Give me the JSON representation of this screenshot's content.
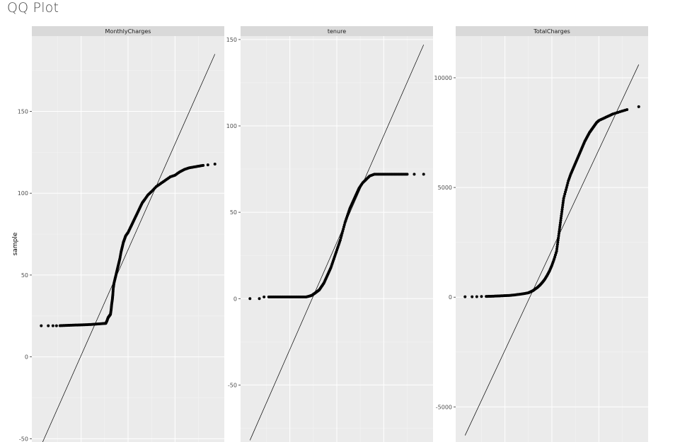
{
  "page": {
    "title": "QQ Plot",
    "y_axis_title": "sample"
  },
  "colors": {
    "panel_bg": "#ebebeb",
    "strip_bg": "#d9d9d9",
    "grid_major": "#ffffff",
    "points": "#000000",
    "line": "#000000"
  },
  "chart_data": [
    {
      "type": "scatter",
      "facet": "MonthlyCharges",
      "x_range": [
        -4.1,
        4.1
      ],
      "ylim": [
        -52,
        196
      ],
      "yticks": [
        -50,
        0,
        50,
        100,
        150
      ],
      "ytick_labels": [
        "-50",
        "0",
        "50",
        "100",
        "150"
      ],
      "reference_line": {
        "x1": -3.7,
        "y1": -54,
        "x2": 3.7,
        "y2": 185
      },
      "points": [
        [
          -3.7,
          19
        ],
        [
          -3.4,
          19
        ],
        [
          -3.2,
          19
        ],
        [
          -3.05,
          19
        ],
        [
          -2.9,
          19.1
        ],
        [
          -2.7,
          19.2
        ],
        [
          -2.5,
          19.3
        ],
        [
          -2.3,
          19.4
        ],
        [
          -2.1,
          19.5
        ],
        [
          -1.9,
          19.6
        ],
        [
          -1.7,
          19.7
        ],
        [
          -1.5,
          19.9
        ],
        [
          -1.3,
          20.1
        ],
        [
          -1.1,
          20.3
        ],
        [
          -0.95,
          20.5
        ],
        [
          -0.9,
          22
        ],
        [
          -0.85,
          24
        ],
        [
          -0.8,
          25
        ],
        [
          -0.75,
          26
        ],
        [
          -0.72,
          29
        ],
        [
          -0.7,
          32
        ],
        [
          -0.67,
          35
        ],
        [
          -0.65,
          38
        ],
        [
          -0.63,
          42
        ],
        [
          -0.6,
          45
        ],
        [
          -0.55,
          48
        ],
        [
          -0.5,
          51
        ],
        [
          -0.45,
          54
        ],
        [
          -0.4,
          57
        ],
        [
          -0.35,
          60
        ],
        [
          -0.3,
          64
        ],
        [
          -0.25,
          67
        ],
        [
          -0.2,
          70
        ],
        [
          -0.15,
          72
        ],
        [
          -0.1,
          74
        ],
        [
          0.0,
          76
        ],
        [
          0.1,
          79
        ],
        [
          0.2,
          82
        ],
        [
          0.3,
          85
        ],
        [
          0.4,
          88
        ],
        [
          0.5,
          91
        ],
        [
          0.6,
          94
        ],
        [
          0.7,
          96
        ],
        [
          0.85,
          99
        ],
        [
          1.0,
          101
        ],
        [
          1.2,
          104
        ],
        [
          1.4,
          106
        ],
        [
          1.6,
          108
        ],
        [
          1.8,
          110
        ],
        [
          2.0,
          111
        ],
        [
          2.2,
          113
        ],
        [
          2.4,
          114.5
        ],
        [
          2.6,
          115.5
        ],
        [
          2.8,
          116
        ],
        [
          3.0,
          116.5
        ],
        [
          3.2,
          117
        ],
        [
          3.4,
          117.3
        ],
        [
          3.7,
          117.8
        ]
      ]
    },
    {
      "type": "scatter",
      "facet": "tenure",
      "x_range": [
        -4.1,
        4.1
      ],
      "ylim": [
        -83,
        152
      ],
      "yticks": [
        -50,
        0,
        50,
        100,
        150
      ],
      "ytick_labels": [
        "-50",
        "0",
        "50",
        "100",
        "150"
      ],
      "reference_line": {
        "x1": -3.7,
        "y1": -82,
        "x2": 3.7,
        "y2": 147
      },
      "points": [
        [
          -3.7,
          0
        ],
        [
          -3.3,
          0
        ],
        [
          -3.1,
          1
        ],
        [
          -2.9,
          1
        ],
        [
          -2.7,
          1
        ],
        [
          -2.5,
          1
        ],
        [
          -2.3,
          1
        ],
        [
          -2.1,
          1
        ],
        [
          -1.9,
          1
        ],
        [
          -1.7,
          1
        ],
        [
          -1.5,
          1
        ],
        [
          -1.3,
          1
        ],
        [
          -1.15,
          1.5
        ],
        [
          -1.05,
          2
        ],
        [
          -0.95,
          3
        ],
        [
          -0.85,
          4
        ],
        [
          -0.75,
          5
        ],
        [
          -0.65,
          7
        ],
        [
          -0.55,
          9
        ],
        [
          -0.45,
          12
        ],
        [
          -0.35,
          15
        ],
        [
          -0.25,
          18
        ],
        [
          -0.15,
          22
        ],
        [
          -0.05,
          26
        ],
        [
          0.05,
          30
        ],
        [
          0.15,
          34
        ],
        [
          0.25,
          39
        ],
        [
          0.35,
          44
        ],
        [
          0.45,
          48
        ],
        [
          0.55,
          52
        ],
        [
          0.65,
          55
        ],
        [
          0.75,
          58
        ],
        [
          0.85,
          61
        ],
        [
          0.95,
          64
        ],
        [
          1.1,
          67
        ],
        [
          1.25,
          69
        ],
        [
          1.4,
          71
        ],
        [
          1.6,
          72
        ],
        [
          1.8,
          72
        ],
        [
          2.0,
          72
        ],
        [
          2.2,
          72
        ],
        [
          2.4,
          72
        ],
        [
          2.6,
          72
        ],
        [
          2.8,
          72
        ],
        [
          3.0,
          72
        ],
        [
          3.3,
          72
        ],
        [
          3.7,
          72
        ]
      ]
    },
    {
      "type": "scatter",
      "facet": "TotalCharges",
      "x_range": [
        -4.1,
        4.1
      ],
      "ylim": [
        -6600,
        11900
      ],
      "yticks": [
        -5000,
        0,
        5000,
        10000
      ],
      "ytick_labels": [
        "-5000",
        "0",
        "5000",
        "10000"
      ],
      "reference_line": {
        "x1": -3.7,
        "y1": -6300,
        "x2": 3.7,
        "y2": 10600
      },
      "points": [
        [
          -3.7,
          20
        ],
        [
          -3.4,
          20
        ],
        [
          -3.2,
          25
        ],
        [
          -3.0,
          30
        ],
        [
          -2.8,
          35
        ],
        [
          -2.6,
          40
        ],
        [
          -2.4,
          50
        ],
        [
          -2.2,
          60
        ],
        [
          -2.0,
          70
        ],
        [
          -1.8,
          80
        ],
        [
          -1.6,
          100
        ],
        [
          -1.4,
          130
        ],
        [
          -1.2,
          160
        ],
        [
          -1.0,
          200
        ],
        [
          -0.9,
          250
        ],
        [
          -0.8,
          300
        ],
        [
          -0.7,
          380
        ],
        [
          -0.6,
          460
        ],
        [
          -0.5,
          560
        ],
        [
          -0.4,
          680
        ],
        [
          -0.3,
          820
        ],
        [
          -0.2,
          1000
        ],
        [
          -0.1,
          1200
        ],
        [
          0.0,
          1450
        ],
        [
          0.1,
          1750
        ],
        [
          0.2,
          2100
        ],
        [
          0.25,
          2500
        ],
        [
          0.3,
          2900
        ],
        [
          0.35,
          3300
        ],
        [
          0.4,
          3700
        ],
        [
          0.45,
          4100
        ],
        [
          0.5,
          4500
        ],
        [
          0.6,
          4900
        ],
        [
          0.7,
          5300
        ],
        [
          0.8,
          5600
        ],
        [
          0.9,
          5850
        ],
        [
          1.0,
          6100
        ],
        [
          1.1,
          6350
        ],
        [
          1.2,
          6600
        ],
        [
          1.3,
          6850
        ],
        [
          1.4,
          7100
        ],
        [
          1.5,
          7300
        ],
        [
          1.6,
          7500
        ],
        [
          1.7,
          7650
        ],
        [
          1.8,
          7800
        ],
        [
          1.9,
          7950
        ],
        [
          2.0,
          8050
        ],
        [
          2.2,
          8150
        ],
        [
          2.4,
          8250
        ],
        [
          2.6,
          8350
        ],
        [
          2.9,
          8450
        ],
        [
          3.2,
          8550
        ],
        [
          3.7,
          8680
        ]
      ]
    }
  ]
}
